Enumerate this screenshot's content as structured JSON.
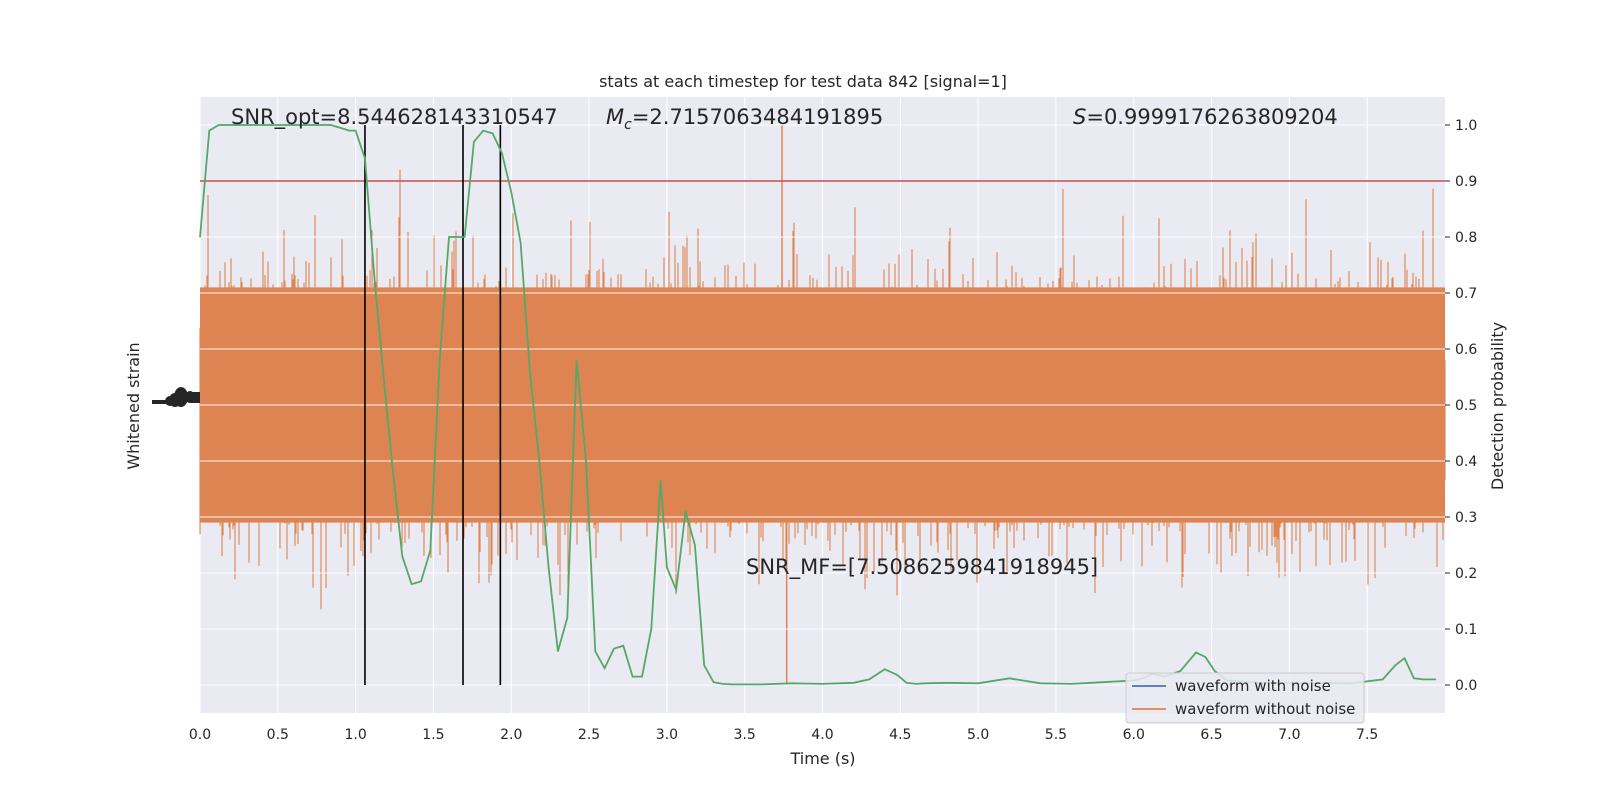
{
  "chart_data": {
    "type": "line",
    "title": "stats at each timestep for test data 842 [signal=1]",
    "xlabel": "Time (s)",
    "ylabel_left": "Whitened strain",
    "ylabel_right": "Detection probability",
    "xlim": [
      0,
      8
    ],
    "ylim_right": [
      -0.05,
      1.05
    ],
    "x_ticks": [
      "0.0",
      "0.5",
      "1.0",
      "1.5",
      "2.0",
      "2.5",
      "3.0",
      "3.5",
      "4.0",
      "4.5",
      "5.0",
      "5.5",
      "6.0",
      "6.5",
      "7.0",
      "7.5"
    ],
    "right_ticks": [
      "0.0",
      "0.1",
      "0.2",
      "0.3",
      "0.4",
      "0.5",
      "0.6",
      "0.7",
      "0.8",
      "0.9",
      "1.0"
    ],
    "annotations": {
      "snr_opt": "SNR_opt=8.544628143310547",
      "mc_symbol": "M",
      "mc_sub": "c",
      "mc_value": "=2.7157063484191895",
      "s_symbol": "S",
      "s_value": "=0.9999176263809204",
      "snr_mf": "SNR_MF=[7.5086259841918945]"
    },
    "threshold": 0.9,
    "vlines": [
      1.06,
      1.69,
      1.93
    ],
    "legend": {
      "placement": "lower-right",
      "entries": [
        "waveform with noise",
        "waveform without noise"
      ]
    },
    "colors": {
      "background": "#eaeaf2",
      "grid": "#ffffff",
      "noise_series": "#dd8452",
      "clean_series": "#4c72b0",
      "probability": "#55a868",
      "threshold": "#c44e52",
      "vline": "#000000"
    },
    "series": [
      {
        "name": "Detection probability",
        "x": [
          0.0,
          0.06,
          0.12,
          0.18,
          0.24,
          0.3,
          0.36,
          0.42,
          0.48,
          0.54,
          0.6,
          0.66,
          0.72,
          0.78,
          0.84,
          0.9,
          0.96,
          1.0,
          1.06,
          1.12,
          1.18,
          1.24,
          1.3,
          1.36,
          1.42,
          1.48,
          1.54,
          1.6,
          1.66,
          1.7,
          1.76,
          1.82,
          1.88,
          1.94,
          2.0,
          2.06,
          2.12,
          2.18,
          2.24,
          2.3,
          2.36,
          2.42,
          2.48,
          2.54,
          2.6,
          2.66,
          2.72,
          2.78,
          2.84,
          2.9,
          2.96,
          3.0,
          3.06,
          3.12,
          3.18,
          3.24,
          3.3,
          3.36,
          3.42,
          3.6,
          3.8,
          4.0,
          4.2,
          4.3,
          4.4,
          4.48,
          4.54,
          4.6,
          4.66,
          4.8,
          5.0,
          5.2,
          5.4,
          5.6,
          5.8,
          6.0,
          6.06,
          6.12,
          6.2,
          6.3,
          6.4,
          6.46,
          6.52,
          6.6,
          6.8,
          7.0,
          7.2,
          7.4,
          7.6,
          7.68,
          7.74,
          7.8,
          7.86,
          7.94
        ],
        "values": [
          0.8,
          0.99,
          1.0,
          1.0,
          1.0,
          1.0,
          1.0,
          1.0,
          1.0,
          1.0,
          1.0,
          1.0,
          1.0,
          1.0,
          1.0,
          0.995,
          0.99,
          0.99,
          0.94,
          0.73,
          0.55,
          0.38,
          0.23,
          0.18,
          0.185,
          0.24,
          0.58,
          0.8,
          0.8,
          0.8,
          0.97,
          0.99,
          0.985,
          0.95,
          0.88,
          0.79,
          0.56,
          0.4,
          0.21,
          0.06,
          0.12,
          0.58,
          0.4,
          0.06,
          0.03,
          0.065,
          0.07,
          0.015,
          0.015,
          0.1,
          0.365,
          0.21,
          0.17,
          0.31,
          0.25,
          0.035,
          0.005,
          0.002,
          0.001,
          0.001,
          0.003,
          0.002,
          0.004,
          0.01,
          0.028,
          0.018,
          0.004,
          0.002,
          0.003,
          0.004,
          0.003,
          0.012,
          0.003,
          0.002,
          0.005,
          0.008,
          0.012,
          0.02,
          0.015,
          0.025,
          0.058,
          0.05,
          0.025,
          0.008,
          0.004,
          0.003,
          0.004,
          0.003,
          0.01,
          0.035,
          0.048,
          0.012,
          0.01,
          0.01
        ]
      }
    ]
  }
}
